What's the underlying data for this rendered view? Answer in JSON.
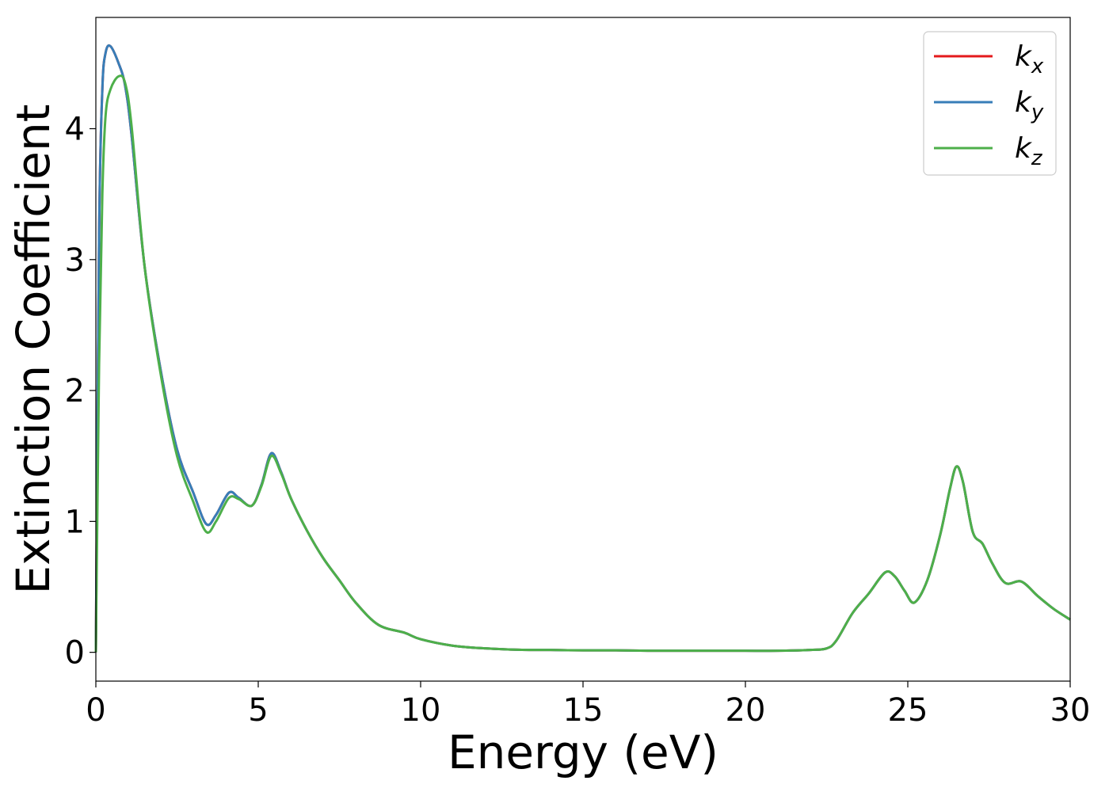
{
  "chart_data": {
    "type": "line",
    "title": "",
    "xlabel": "Energy (eV)",
    "ylabel": "Extinction Coefficient",
    "xlim": [
      0,
      30
    ],
    "ylim": [
      -0.22,
      4.85
    ],
    "xticks": [
      0,
      5,
      10,
      15,
      20,
      25,
      30
    ],
    "yticks": [
      0,
      1,
      2,
      3,
      4
    ],
    "grid": false,
    "legend_position": "top-right",
    "x": [
      0,
      0.1,
      0.2,
      0.3,
      0.45,
      0.7,
      0.9,
      1.1,
      1.5,
      2.0,
      2.5,
      3.0,
      3.4,
      3.7,
      4.1,
      4.4,
      4.8,
      5.1,
      5.4,
      5.7,
      6.0,
      6.5,
      7.0,
      7.5,
      8.0,
      8.7,
      9.5,
      10.0,
      11.0,
      12.0,
      13.0,
      14.0,
      15.0,
      16.0,
      17.0,
      18.0,
      19.0,
      20.0,
      21.0,
      22.0,
      22.5,
      22.8,
      23.3,
      23.8,
      24.3,
      24.6,
      24.9,
      25.2,
      25.6,
      26.0,
      26.3,
      26.5,
      26.7,
      27.0,
      27.3,
      27.6,
      28.0,
      28.5,
      29.0,
      29.5,
      30.0
    ],
    "series": [
      {
        "name": "k_x",
        "color": "#e41a1c",
        "values": [
          0.0,
          3.2,
          4.3,
          4.58,
          4.63,
          4.5,
          4.33,
          3.95,
          2.95,
          2.15,
          1.55,
          1.22,
          0.98,
          1.05,
          1.22,
          1.18,
          1.12,
          1.28,
          1.52,
          1.38,
          1.18,
          0.93,
          0.72,
          0.55,
          0.38,
          0.21,
          0.15,
          0.1,
          0.05,
          0.03,
          0.02,
          0.018,
          0.015,
          0.015,
          0.012,
          0.012,
          0.012,
          0.012,
          0.012,
          0.018,
          0.03,
          0.09,
          0.3,
          0.45,
          0.61,
          0.58,
          0.47,
          0.38,
          0.55,
          0.9,
          1.25,
          1.42,
          1.3,
          0.92,
          0.83,
          0.68,
          0.53,
          0.54,
          0.43,
          0.33,
          0.25
        ]
      },
      {
        "name": "k_y",
        "color": "#377eb8",
        "values": [
          0.0,
          3.2,
          4.3,
          4.58,
          4.63,
          4.5,
          4.33,
          3.95,
          2.95,
          2.15,
          1.55,
          1.22,
          0.98,
          1.05,
          1.22,
          1.18,
          1.12,
          1.28,
          1.52,
          1.38,
          1.18,
          0.93,
          0.72,
          0.55,
          0.38,
          0.21,
          0.15,
          0.1,
          0.05,
          0.03,
          0.02,
          0.018,
          0.015,
          0.015,
          0.012,
          0.012,
          0.012,
          0.012,
          0.012,
          0.018,
          0.03,
          0.09,
          0.3,
          0.45,
          0.61,
          0.58,
          0.47,
          0.38,
          0.55,
          0.9,
          1.25,
          1.42,
          1.3,
          0.92,
          0.83,
          0.68,
          0.53,
          0.54,
          0.43,
          0.33,
          0.25
        ]
      },
      {
        "name": "k_z",
        "color": "#4daf4a",
        "values": [
          0.0,
          2.2,
          3.5,
          4.1,
          4.3,
          4.4,
          4.35,
          4.02,
          2.95,
          2.12,
          1.5,
          1.15,
          0.92,
          1.0,
          1.18,
          1.17,
          1.12,
          1.27,
          1.5,
          1.37,
          1.18,
          0.93,
          0.72,
          0.55,
          0.38,
          0.21,
          0.15,
          0.1,
          0.05,
          0.03,
          0.02,
          0.018,
          0.015,
          0.015,
          0.012,
          0.012,
          0.012,
          0.012,
          0.012,
          0.018,
          0.03,
          0.09,
          0.3,
          0.45,
          0.61,
          0.58,
          0.47,
          0.38,
          0.55,
          0.9,
          1.25,
          1.42,
          1.3,
          0.92,
          0.83,
          0.68,
          0.53,
          0.54,
          0.43,
          0.33,
          0.25
        ]
      }
    ],
    "legend": [
      {
        "base": "k",
        "sub": "x"
      },
      {
        "base": "k",
        "sub": "y"
      },
      {
        "base": "k",
        "sub": "z"
      }
    ]
  }
}
